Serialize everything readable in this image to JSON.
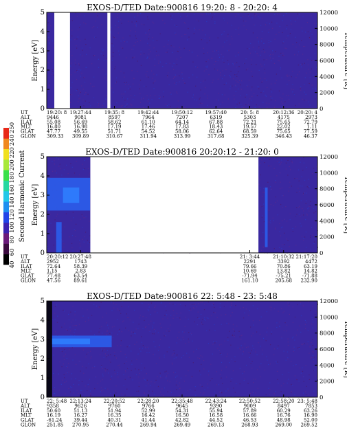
{
  "colorbar": {
    "label": "Second Harmonic Current",
    "ticks": [
      "40",
      "60",
      "80",
      "100",
      "120",
      "140",
      "160",
      "180",
      "200",
      "220",
      "240",
      "250"
    ],
    "colors": [
      "#000000",
      "#3a0a3e",
      "#6a1a7a",
      "#3a22b0",
      "#2244e8",
      "#1f8ff0",
      "#22c8e8",
      "#26d8a0",
      "#3ae04a",
      "#a8e83a",
      "#f0e020",
      "#f08820",
      "#e82818"
    ]
  },
  "chart_data": [
    {
      "type": "heatmap",
      "title": "EXOS-D/TED   Date:900816  19:20: 8 - 20:20: 4",
      "ylabel": "Energy [eV]",
      "ylabel_right": "Temperature [K]",
      "ylim": [
        0,
        5
      ],
      "ylim_right": [
        0,
        12000
      ],
      "yticks": [
        "0",
        "1",
        "2",
        "3",
        "4",
        "5"
      ],
      "yticks_right": [
        "0",
        "2000",
        "4000",
        "6000",
        "8000",
        "10000",
        "12000"
      ],
      "background_color": "#3a28a0",
      "gaps": [
        [
          0.028,
          0.086
        ],
        [
          0.224,
          0.235
        ]
      ],
      "features": [],
      "orbit": {
        "row_labels": [
          "UT",
          "ALT",
          "ILAT",
          "MLT",
          "GLAT",
          "GLON"
        ],
        "columns": [
          {
            "frac": 0.0,
            "values": [
              "19:20: 8",
              "9446",
              "55.08",
              "16.80",
              "47.77",
              "309.33"
            ]
          },
          {
            "frac": 0.125,
            "values": [
              "19:27:44",
              "9081",
              "56.69",
              "16.98",
              "49.55",
              "309.89"
            ]
          },
          {
            "frac": 0.25,
            "values": [
              "19:35: 8",
              "8597",
              "58.62",
              "17.19",
              "51.71",
              "310.67"
            ]
          },
          {
            "frac": 0.375,
            "values": [
              "19:42:44",
              "7964",
              "61.10",
              "17.46",
              "54.52",
              "311.94"
            ]
          },
          {
            "frac": 0.5,
            "values": [
              "19:50:12",
              "7207",
              "64.14",
              "17.83",
              "58.06",
              "313.99"
            ]
          },
          {
            "frac": 0.625,
            "values": [
              "19:57:40",
              "6319",
              "67.88",
              "18.43",
              "62.64",
              "317.68"
            ]
          },
          {
            "frac": 0.75,
            "values": [
              "20: 5: 8",
              "5303",
              "72.21",
              "19.57",
              "68.59",
              "325.39"
            ]
          },
          {
            "frac": 0.875,
            "values": [
              "20:12:36",
              "4175",
              "75.65",
              "22.02",
              "75.65",
              "346.43"
            ]
          },
          {
            "frac": 1.0,
            "values": [
              "20:20: 4",
              "2973",
              "72.79",
              "1.11",
              "77.59",
              "46.37"
            ]
          }
        ]
      }
    },
    {
      "type": "heatmap",
      "title": "EXOS-D/TED   Date:900816  20:20:12 - 21:20: 0",
      "ylabel": "Energy [eV]",
      "ylabel_right": "Temperature [K]",
      "ylim": [
        0,
        5
      ],
      "ylim_right": [
        0,
        12000
      ],
      "yticks": [
        "0",
        "1",
        "2",
        "3",
        "4",
        "5"
      ],
      "yticks_right": [
        "0",
        "2000",
        "4000",
        "6000",
        "8000",
        "10000",
        "12000"
      ],
      "background_color": "#3a28a0",
      "gaps": [
        [
          0.161,
          0.782
        ]
      ],
      "features": [
        {
          "x0": 0.0,
          "x1": 0.16,
          "y0": 2.2,
          "y1": 3.9,
          "color": "#2a60f0"
        },
        {
          "x0": 0.06,
          "x1": 0.12,
          "y0": 2.6,
          "y1": 3.4,
          "color": "#2f80ff"
        },
        {
          "x0": 0.035,
          "x1": 0.055,
          "y0": 0.0,
          "y1": 1.6,
          "color": "#2a60f0"
        },
        {
          "x0": 0.806,
          "x1": 0.816,
          "y0": 0.3,
          "y1": 3.4,
          "color": "#2a60f0"
        }
      ],
      "orbit": {
        "row_labels": [
          "UT",
          "ALT",
          "ILAT",
          "MLT",
          "GLAT",
          "GLON"
        ],
        "columns": [
          {
            "frac": 0.0,
            "values": [
              "20:20:12",
              "2952",
              "72.64",
              "1.15",
              "77.48",
              "47.56"
            ]
          },
          {
            "frac": 0.125,
            "values": [
              "20:27:48",
              "1743",
              "58.39",
              "2.83",
              "63.54",
              "89.61"
            ]
          },
          {
            "frac": 0.75,
            "values": [
              "21: 3:44",
              "2291",
              "79.66",
              "10.69",
              "-71.94",
              "161.10"
            ]
          },
          {
            "frac": 0.875,
            "values": [
              "21:10:32",
              "3392",
              "70.86",
              "13.82",
              "-75.21",
              "205.68"
            ]
          },
          {
            "frac": 1.0,
            "values": [
              "21:17:20",
              "4472",
              "63.19",
              "14.82",
              "-71.88",
              "232.90"
            ]
          }
        ]
      }
    },
    {
      "type": "heatmap",
      "title": "EXOS-D/TED   Date:900816  22: 5:48 - 23: 5:48",
      "ylabel": "Energy [eV]",
      "ylabel_right": "Temperature [K]",
      "ylim": [
        0,
        5
      ],
      "ylim_right": [
        0,
        12000
      ],
      "yticks": [
        "0",
        "1",
        "2",
        "3",
        "4",
        "5"
      ],
      "yticks_right": [
        "0",
        "2000",
        "4000",
        "6000",
        "8000",
        "10000",
        "12000"
      ],
      "background_color": "#3a28a0",
      "gaps": [],
      "features": [
        {
          "x0": 0.0,
          "x1": 0.02,
          "y0": 0.0,
          "y1": 5.0,
          "color": "#000000"
        },
        {
          "x0": 0.02,
          "x1": 0.24,
          "y0": 2.6,
          "y1": 3.2,
          "color": "#2a60f0"
        },
        {
          "x0": 0.02,
          "x1": 0.16,
          "y0": 2.75,
          "y1": 3.05,
          "color": "#2f80ff"
        }
      ],
      "orbit": {
        "row_labels": [
          "UT",
          "ALT",
          "ILAT",
          "MLT",
          "GLAT",
          "GLON"
        ],
        "columns": [
          {
            "frac": 0.0,
            "values": [
              "22: 5:48",
              "9358",
              "50.60",
              "16.19",
              "-61.24",
              "251.85"
            ]
          },
          {
            "frac": 0.125,
            "values": [
              "22:13:24",
              "9626",
              "51.13",
              "16.27",
              "39.44",
              "270.95"
            ]
          },
          {
            "frac": 0.25,
            "values": [
              "22:20:52",
              "9760",
              "51.94",
              "16.35",
              "40.31",
              "270.44"
            ]
          },
          {
            "frac": 0.375,
            "values": [
              "22:28:20",
              "9766",
              "52.99",
              "16.42",
              "41.44",
              "269.94"
            ]
          },
          {
            "frac": 0.5,
            "values": [
              "22:35:48",
              "9645",
              "54.31",
              "16.50",
              "42.82",
              "269.49"
            ]
          },
          {
            "frac": 0.625,
            "values": [
              "22:43:24",
              "9390",
              "55.94",
              "16.58",
              "44.52",
              "269.13"
            ]
          },
          {
            "frac": 0.75,
            "values": [
              "22:50:52",
              "9009",
              "57.89",
              "16.66",
              "46.53",
              "268.93"
            ]
          },
          {
            "frac": 0.875,
            "values": [
              "22:58:20",
              "8497",
              "60.29",
              "16.76",
              "48.98",
              "269.00"
            ]
          },
          {
            "frac": 1.0,
            "values": [
              "23: 5:48",
              "7853",
              "63.26",
              "16.90",
              "52.00",
              "269.52"
            ]
          }
        ]
      }
    }
  ]
}
